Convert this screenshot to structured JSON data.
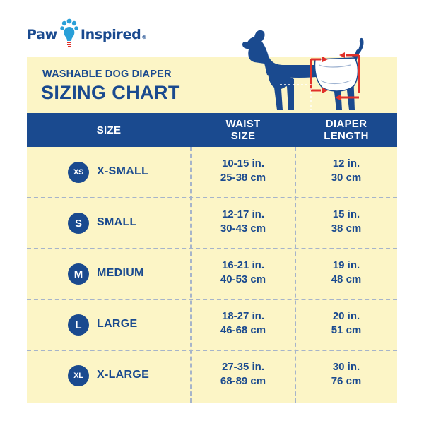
{
  "brand": {
    "name_left": "Paw",
    "name_right": "Inspired",
    "registered": "®",
    "logo_icon": "paw-lightbulb-icon"
  },
  "colors": {
    "navy": "#1a4a8f",
    "cream": "#fcf5c6",
    "brand_light_blue": "#2aa0d8",
    "arrow_red": "#e0302a",
    "divider": "#a6b4ca"
  },
  "heading": {
    "subtitle": "WASHABLE DOG DIAPER",
    "title": "SIZING CHART",
    "illustration": "dog-wearing-diaper-icon"
  },
  "table": {
    "headers": {
      "size": "SIZE",
      "waist_line1": "WAIST",
      "waist_line2": "SIZE",
      "diaper_line1": "DIAPER",
      "diaper_line2": "LENGTH"
    },
    "rows": [
      {
        "badge": "XS",
        "label": "X-SMALL",
        "waist_in": "10-15 in.",
        "waist_cm": "25-38 cm",
        "length_in": "12 in.",
        "length_cm": "30 cm"
      },
      {
        "badge": "S",
        "label": "SMALL",
        "waist_in": "12-17 in.",
        "waist_cm": "30-43 cm",
        "length_in": "15 in.",
        "length_cm": "38 cm"
      },
      {
        "badge": "M",
        "label": "MEDIUM",
        "waist_in": "16-21 in.",
        "waist_cm": "40-53 cm",
        "length_in": "19 in.",
        "length_cm": "48 cm"
      },
      {
        "badge": "L",
        "label": "LARGE",
        "waist_in": "18-27 in.",
        "waist_cm": "46-68 cm",
        "length_in": "20 in.",
        "length_cm": "51 cm"
      },
      {
        "badge": "XL",
        "label": "X-LARGE",
        "waist_in": "27-35 in.",
        "waist_cm": "68-89 cm",
        "length_in": "30 in.",
        "length_cm": "76 cm"
      }
    ]
  }
}
